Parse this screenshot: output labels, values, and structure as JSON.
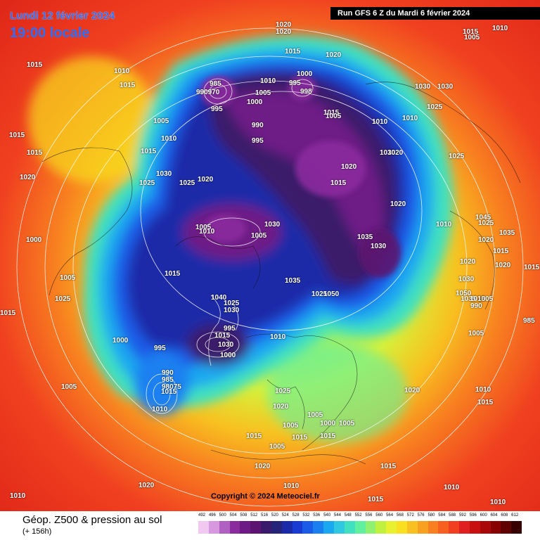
{
  "header": {
    "date": "Lundi 12 février 2024",
    "time": "19:00 locale",
    "run": "Run GFS 6 Z du Mardi 6 février 2024"
  },
  "copyright": "Copyright © 2024 Meteociel.fr",
  "footer": {
    "product": "Géop. Z500 & pression au sol",
    "lead_time": "(+ 156h)"
  },
  "color_scale": {
    "labels": [
      "492",
      "496",
      "500",
      "504",
      "508",
      "512",
      "516",
      "520",
      "524",
      "528",
      "532",
      "536",
      "540",
      "544",
      "548",
      "552",
      "556",
      "560",
      "564",
      "568",
      "572",
      "576",
      "580",
      "584",
      "588",
      "592",
      "596",
      "600",
      "604",
      "608",
      "612"
    ],
    "colors": [
      "#f0c8f0",
      "#d898e0",
      "#b060c0",
      "#8a2c9e",
      "#6e1a86",
      "#5c1470",
      "#3a1a6a",
      "#26247a",
      "#1a2aa8",
      "#1a3ad4",
      "#1a5ce8",
      "#1a80f0",
      "#1aa8f0",
      "#30c8e0",
      "#40e0c0",
      "#60f0a0",
      "#90f070",
      "#c0f040",
      "#e8f030",
      "#f8e020",
      "#f8c020",
      "#f8a020",
      "#f88020",
      "#f86020",
      "#f04020",
      "#e02020",
      "#c81010",
      "#a80808",
      "#880000",
      "#600000",
      "#380000"
    ]
  },
  "pressure_labels": [
    {
      "t": "1020"
    },
    {
      "t": "1020"
    },
    {
      "t": "1015"
    },
    {
      "t": "1020"
    },
    {
      "t": "1015"
    },
    {
      "t": "1010"
    },
    {
      "t": "1015"
    },
    {
      "t": "985"
    },
    {
      "t": "990970"
    },
    {
      "t": "1010"
    },
    {
      "t": "1000"
    },
    {
      "t": "995"
    },
    {
      "t": "998"
    },
    {
      "t": "1005"
    },
    {
      "t": "1000"
    },
    {
      "t": "995"
    },
    {
      "t": "1030"
    },
    {
      "t": "1030"
    },
    {
      "t": "1025"
    },
    {
      "t": "1015"
    },
    {
      "t": "1005"
    },
    {
      "t": "1010"
    },
    {
      "t": "1010"
    },
    {
      "t": "1015"
    },
    {
      "t": "990"
    },
    {
      "t": "995"
    },
    {
      "t": "1005"
    },
    {
      "t": "1010"
    },
    {
      "t": "1015"
    },
    {
      "t": "1015"
    },
    {
      "t": "1020"
    },
    {
      "t": "1025"
    },
    {
      "t": "1030"
    },
    {
      "t": "1020"
    },
    {
      "t": "1025"
    },
    {
      "t": "1015"
    },
    {
      "t": "1010"
    },
    {
      "t": "1005"
    },
    {
      "t": "1025"
    },
    {
      "t": "1020"
    },
    {
      "t": "1015"
    },
    {
      "t": "1020"
    },
    {
      "t": "1030"
    },
    {
      "t": "1020"
    },
    {
      "t": "1010"
    },
    {
      "t": "1005"
    },
    {
      "t": "1010"
    },
    {
      "t": "1005"
    },
    {
      "t": "1030"
    },
    {
      "t": "1035"
    },
    {
      "t": "1030"
    },
    {
      "t": "1045"
    },
    {
      "t": "1025"
    },
    {
      "t": "1035"
    },
    {
      "t": "1020"
    },
    {
      "t": "1015"
    },
    {
      "t": "1020"
    },
    {
      "t": "1000"
    },
    {
      "t": "1005"
    },
    {
      "t": "1025"
    },
    {
      "t": "1015"
    },
    {
      "t": "1020"
    },
    {
      "t": "1030"
    },
    {
      "t": "1035"
    },
    {
      "t": "1040"
    },
    {
      "t": "1025"
    },
    {
      "t": "1030"
    },
    {
      "t": "1035"
    },
    {
      "t": "1025"
    },
    {
      "t": "1050"
    },
    {
      "t": "1050"
    },
    {
      "t": "1015"
    },
    {
      "t": "1005"
    },
    {
      "t": "990"
    },
    {
      "t": "985"
    },
    {
      "t": "995"
    },
    {
      "t": "1015"
    },
    {
      "t": "1030"
    },
    {
      "t": "1000"
    },
    {
      "t": "1010"
    },
    {
      "t": "1005"
    },
    {
      "t": "1000"
    },
    {
      "t": "995"
    },
    {
      "t": "990"
    },
    {
      "t": "985"
    },
    {
      "t": "98075"
    },
    {
      "t": "1015"
    },
    {
      "t": "1010"
    },
    {
      "t": "1005"
    },
    {
      "t": "1025"
    },
    {
      "t": "1020"
    },
    {
      "t": "1020"
    },
    {
      "t": "1010"
    },
    {
      "t": "1015"
    },
    {
      "t": "1005"
    },
    {
      "t": "1005"
    },
    {
      "t": "1000"
    },
    {
      "t": "1005"
    },
    {
      "t": "1015"
    },
    {
      "t": "1015"
    },
    {
      "t": "1005"
    },
    {
      "t": "1015"
    },
    {
      "t": "1020"
    },
    {
      "t": "1010"
    },
    {
      "t": "1015"
    },
    {
      "t": "1020"
    },
    {
      "t": "1010"
    },
    {
      "t": "1010"
    },
    {
      "t": "1010"
    },
    {
      "t": "1015"
    },
    {
      "t": "1015"
    },
    {
      "t": "1015"
    }
  ]
}
